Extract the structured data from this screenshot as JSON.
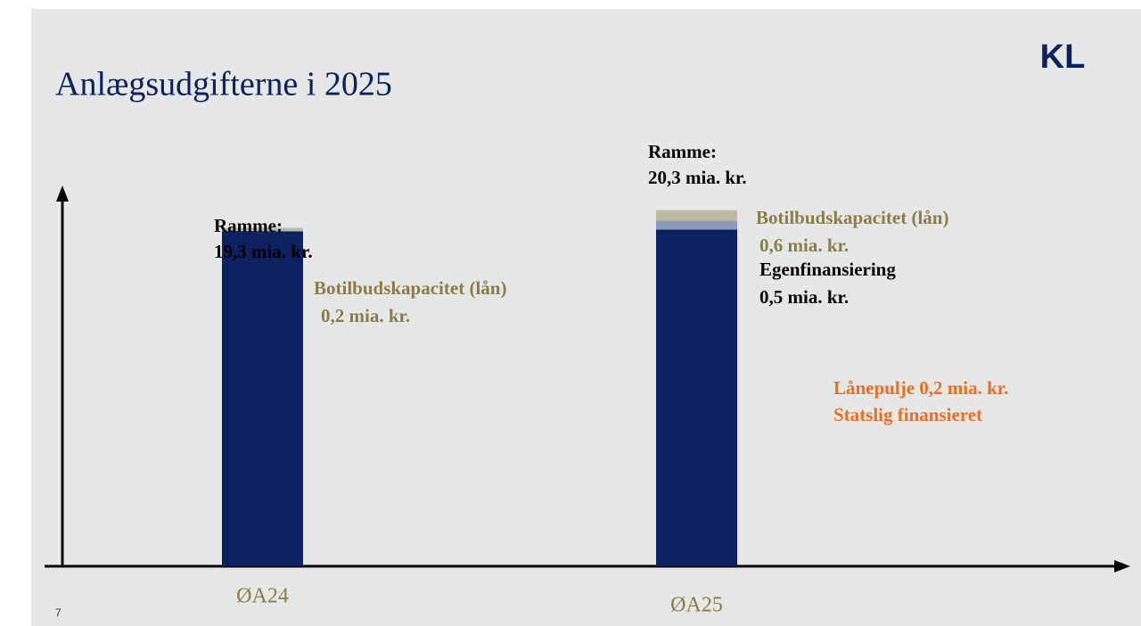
{
  "chart_data": {
    "type": "stacked_bar",
    "title": "Anlægsudgifterne i 2025",
    "logo": "KL",
    "page_number": "7",
    "categories": [
      "ØA24",
      "ØA25"
    ],
    "series": [
      {
        "color": "#0b2161",
        "values": [
          19.1,
          19.2
        ]
      },
      {
        "name": "Egenfinansiering",
        "color": "#8a9ab8",
        "values": [
          null,
          0.5
        ],
        "value_labels": [
          null,
          "0,5 mia. kr."
        ]
      },
      {
        "name": "Botilbudskapacitet (lån)",
        "color": "#bcb9a6",
        "values": [
          0.2,
          0.6
        ],
        "value_labels": [
          "0,2 mia. kr.",
          "0,6 mia. kr."
        ]
      }
    ],
    "ylim": [
      0,
      21
    ],
    "annotations": [
      {
        "lines": [
          "Ramme:",
          "19,3 mia. kr."
        ]
      },
      {
        "lines": [
          "Ramme:",
          "20,3 mia. kr."
        ]
      },
      {
        "lines": [
          "Lånepulje 0,2 mia. kr.",
          "Statslig finansieret"
        ]
      }
    ]
  }
}
